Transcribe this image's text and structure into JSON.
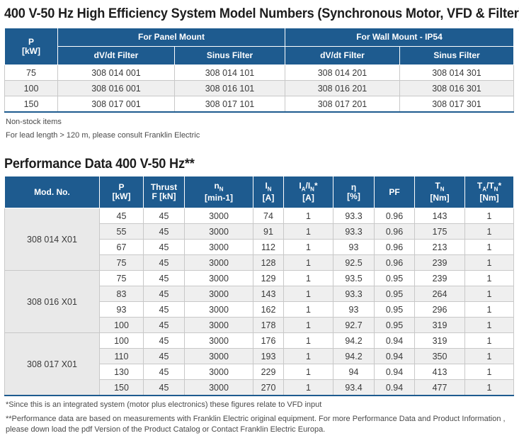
{
  "title1": "400 V-50 Hz High Efficiency System Model Numbers (Synchronous Motor, VFD & Filter)",
  "table1": {
    "p_head": "P",
    "p_unit": "[kW]",
    "group1": "For Panel Mount",
    "group2": "For Wall Mount - IP54",
    "sub1": "dV/dt Filter",
    "sub2": "Sinus Filter",
    "sub3": "dV/dt Filter",
    "sub4": "Sinus Filter",
    "rows": [
      {
        "p": "75",
        "c1": "308 014 001",
        "c2": "308 014 101",
        "c3": "308 014 201",
        "c4": "308 014 301"
      },
      {
        "p": "100",
        "c1": "308 016 001",
        "c2": "308 016 101",
        "c3": "308 016 201",
        "c4": "308 016 301"
      },
      {
        "p": "150",
        "c1": "308 017 001",
        "c2": "308 017 101",
        "c3": "308 017 201",
        "c4": "308 017 301"
      }
    ]
  },
  "note1": "Non-stock items",
  "note2": "For lead length > 120 m, please consult Franklin Electric",
  "title2": "Performance Data 400 V-50 Hz**",
  "table2": {
    "headers": {
      "mod": "Mod. No.",
      "p": "P",
      "p_unit": "[kW]",
      "thrust": "Thrust",
      "thrust_unit": "F [kN]",
      "n": "n",
      "n_sub": "N",
      "n_unit": "[min-1]",
      "i": "I",
      "i_sub": "N",
      "i_unit": "[A]",
      "ia": "I",
      "ia_sub": "A",
      "ia_sep": "/I",
      "ia_sub2": "N",
      "ia_star": "*",
      "ia_unit": "[A]",
      "eta": "η",
      "eta_unit": "[%]",
      "pf": "PF",
      "t": "T",
      "t_sub": "N",
      "t_unit": "[Nm]",
      "ta": "T",
      "ta_sub": "A",
      "ta_sep": "/T",
      "ta_sub2": "N",
      "ta_star": "*",
      "ta_unit": "[Nm]"
    },
    "groups": [
      {
        "model": "308 014 X01",
        "rows": [
          {
            "p": "45",
            "f": "45",
            "n": "3000",
            "i": "74",
            "ia": "1",
            "eta": "93.3",
            "pf": "0.96",
            "t": "143",
            "ta": "1"
          },
          {
            "p": "55",
            "f": "45",
            "n": "3000",
            "i": "91",
            "ia": "1",
            "eta": "93.3",
            "pf": "0.96",
            "t": "175",
            "ta": "1"
          },
          {
            "p": "67",
            "f": "45",
            "n": "3000",
            "i": "112",
            "ia": "1",
            "eta": "93",
            "pf": "0.96",
            "t": "213",
            "ta": "1"
          },
          {
            "p": "75",
            "f": "45",
            "n": "3000",
            "i": "128",
            "ia": "1",
            "eta": "92.5",
            "pf": "0.96",
            "t": "239",
            "ta": "1"
          }
        ]
      },
      {
        "model": "308 016 X01",
        "rows": [
          {
            "p": "75",
            "f": "45",
            "n": "3000",
            "i": "129",
            "ia": "1",
            "eta": "93.5",
            "pf": "0.95",
            "t": "239",
            "ta": "1"
          },
          {
            "p": "83",
            "f": "45",
            "n": "3000",
            "i": "143",
            "ia": "1",
            "eta": "93.3",
            "pf": "0.95",
            "t": "264",
            "ta": "1"
          },
          {
            "p": "93",
            "f": "45",
            "n": "3000",
            "i": "162",
            "ia": "1",
            "eta": "93",
            "pf": "0.95",
            "t": "296",
            "ta": "1"
          },
          {
            "p": "100",
            "f": "45",
            "n": "3000",
            "i": "178",
            "ia": "1",
            "eta": "92.7",
            "pf": "0.95",
            "t": "319",
            "ta": "1"
          }
        ]
      },
      {
        "model": "308 017 X01",
        "rows": [
          {
            "p": "100",
            "f": "45",
            "n": "3000",
            "i": "176",
            "ia": "1",
            "eta": "94.2",
            "pf": "0.94",
            "t": "319",
            "ta": "1"
          },
          {
            "p": "110",
            "f": "45",
            "n": "3000",
            "i": "193",
            "ia": "1",
            "eta": "94.2",
            "pf": "0.94",
            "t": "350",
            "ta": "1"
          },
          {
            "p": "130",
            "f": "45",
            "n": "3000",
            "i": "229",
            "ia": "1",
            "eta": "94",
            "pf": "0.94",
            "t": "413",
            "ta": "1"
          },
          {
            "p": "150",
            "f": "45",
            "n": "3000",
            "i": "270",
            "ia": "1",
            "eta": "93.4",
            "pf": "0.94",
            "t": "477",
            "ta": "1"
          }
        ]
      }
    ]
  },
  "footnote1": "*Since this is an integrated system (motor plus electronics) these figures relate to VFD input",
  "footnote2a": "**Performance data are based on measurements with Franklin Electric original equipment. For more Performance Data and Product Information ,",
  "footnote2b": " please down load the pdf Version of the Product Catalog or Contact Franklin Electric Europa.",
  "colors": {
    "header_bg": "#1e5b8f",
    "header_text": "#ffffff",
    "row_alt": "#efefef",
    "model_cell": "#e9e9e9"
  }
}
